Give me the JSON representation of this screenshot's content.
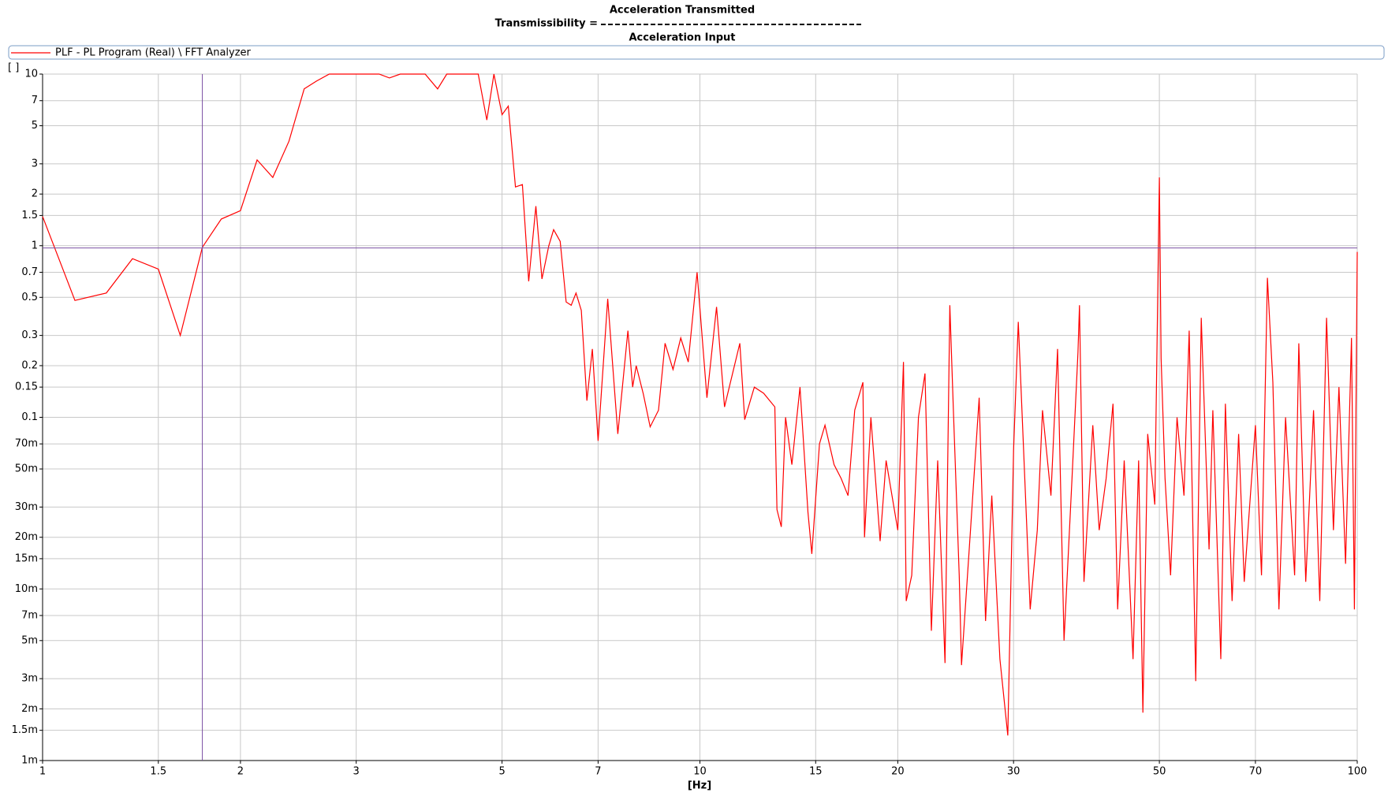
{
  "chart_data": {
    "type": "line",
    "title_numerator": "Acceleration Transmitted",
    "title_lhs": "Transmissibility =",
    "title_denominator": "Acceleration Input",
    "y_unit": "[ ]",
    "x_label": "[Hz]",
    "xscale": "log",
    "yscale": "log",
    "grid": true,
    "xlim": [
      1,
      100
    ],
    "xticks": [
      1,
      1.5,
      2,
      3,
      5,
      7,
      10,
      15,
      20,
      30,
      50,
      70,
      100
    ],
    "ylim": [
      0.001,
      10
    ],
    "yticks": [
      {
        "value": 0.001,
        "label": "1m"
      },
      {
        "value": 0.0015,
        "label": "1.5m"
      },
      {
        "value": 0.002,
        "label": "2m"
      },
      {
        "value": 0.003,
        "label": "3m"
      },
      {
        "value": 0.005,
        "label": "5m"
      },
      {
        "value": 0.007,
        "label": "7m"
      },
      {
        "value": 0.01,
        "label": "10m"
      },
      {
        "value": 0.015,
        "label": "15m"
      },
      {
        "value": 0.02,
        "label": "20m"
      },
      {
        "value": 0.03,
        "label": "30m"
      },
      {
        "value": 0.05,
        "label": "50m"
      },
      {
        "value": 0.07,
        "label": "70m"
      },
      0.1,
      0.15,
      0.2,
      0.3,
      0.5,
      0.7,
      1,
      1.5,
      2,
      3,
      5,
      7,
      10
    ],
    "cursors": {
      "x": 1.75,
      "y": 0.97,
      "color": "#7a4fa3"
    },
    "x": [
      1,
      1.12,
      1.25,
      1.37,
      1.5,
      1.62,
      1.75,
      1.87,
      2.0,
      2.12,
      2.24,
      2.37,
      2.5,
      2.61,
      2.73,
      3.25,
      3.37,
      3.5,
      3.82,
      3.99,
      4.12,
      4.6,
      4.74,
      4.86,
      5.0,
      5.11,
      5.24,
      5.37,
      5.49,
      5.63,
      5.75,
      5.89,
      5.99,
      6.13,
      6.26,
      6.37,
      6.48,
      6.6,
      6.73,
      6.86,
      7.0,
      7.24,
      7.5,
      7.77,
      7.9,
      8.0,
      8.2,
      8.4,
      8.65,
      8.85,
      9.1,
      9.35,
      9.6,
      9.9,
      10.25,
      10.6,
      10.9,
      11.5,
      11.7,
      12.1,
      12.5,
      13.0,
      13.1,
      13.3,
      13.5,
      13.8,
      14.2,
      14.6,
      14.8,
      15.2,
      15.5,
      16.0,
      16.4,
      16.8,
      17.2,
      17.7,
      17.8,
      18.2,
      18.8,
      19.2,
      20.0,
      20.4,
      20.6,
      21.0,
      21.5,
      22.0,
      22.5,
      23.0,
      23.6,
      24.0,
      24.3,
      24.8,
      25.0,
      25.8,
      26.6,
      27.2,
      27.8,
      28.6,
      29.4,
      30.0,
      30.5,
      31.8,
      32.6,
      33.2,
      34.2,
      35.0,
      35.8,
      36.8,
      37.6,
      37.8,
      38.4,
      39.6,
      40.5,
      41.5,
      42.5,
      43.2,
      44.2,
      45.6,
      46.5,
      47.2,
      48.0,
      49.2,
      50.0,
      50.3,
      51.0,
      52.0,
      53.2,
      54.5,
      55.5,
      56.8,
      57.9,
      59.5,
      60.3,
      62.0,
      63.0,
      64.5,
      66.0,
      67.3,
      70.0,
      71.5,
      73.0,
      74.4,
      76.0,
      77.8,
      80.3,
      81.5,
      83.5,
      85.8,
      87.7,
      89.8,
      92.0,
      93.8,
      96.0,
      98.0,
      99.0,
      100
    ],
    "series": [
      {
        "name": "PLF - PL Program (Real) \\ FFT Analyzer",
        "color": "#ff0000",
        "values": [
          1.48,
          0.48,
          0.53,
          0.84,
          0.73,
          0.3,
          0.98,
          1.43,
          1.6,
          3.16,
          2.5,
          4.06,
          8.2,
          9.1,
          10,
          10,
          9.5,
          10,
          10,
          8.2,
          10,
          10,
          5.4,
          10,
          5.8,
          6.5,
          2.2,
          2.27,
          0.62,
          1.7,
          0.64,
          1.0,
          1.24,
          1.06,
          0.47,
          0.45,
          0.53,
          0.42,
          0.125,
          0.25,
          0.073,
          0.49,
          0.08,
          0.32,
          0.15,
          0.2,
          0.137,
          0.088,
          0.11,
          0.27,
          0.19,
          0.29,
          0.21,
          0.7,
          0.13,
          0.44,
          0.115,
          0.27,
          0.097,
          0.15,
          0.138,
          0.115,
          0.029,
          0.023,
          0.1,
          0.053,
          0.15,
          0.028,
          0.016,
          0.07,
          0.09,
          0.053,
          0.044,
          0.035,
          0.11,
          0.16,
          0.02,
          0.1,
          0.019,
          0.056,
          0.022,
          0.21,
          0.0085,
          0.012,
          0.1,
          0.18,
          0.0057,
          0.056,
          0.0037,
          0.45,
          0.11,
          0.012,
          0.0036,
          0.022,
          0.13,
          0.0065,
          0.035,
          0.0039,
          0.0014,
          0.064,
          0.36,
          0.0076,
          0.022,
          0.11,
          0.035,
          0.25,
          0.005,
          0.042,
          0.24,
          0.45,
          0.011,
          0.09,
          0.022,
          0.044,
          0.12,
          0.0076,
          0.056,
          0.0039,
          0.056,
          0.0019,
          0.08,
          0.031,
          2.5,
          0.22,
          0.044,
          0.012,
          0.1,
          0.035,
          0.32,
          0.0029,
          0.38,
          0.017,
          0.11,
          0.0039,
          0.12,
          0.0085,
          0.08,
          0.011,
          0.09,
          0.012,
          0.65,
          0.16,
          0.0076,
          0.1,
          0.012,
          0.27,
          0.011,
          0.11,
          0.0085,
          0.38,
          0.022,
          0.15,
          0.014,
          0.29,
          0.0076,
          0.92
        ]
      }
    ]
  }
}
